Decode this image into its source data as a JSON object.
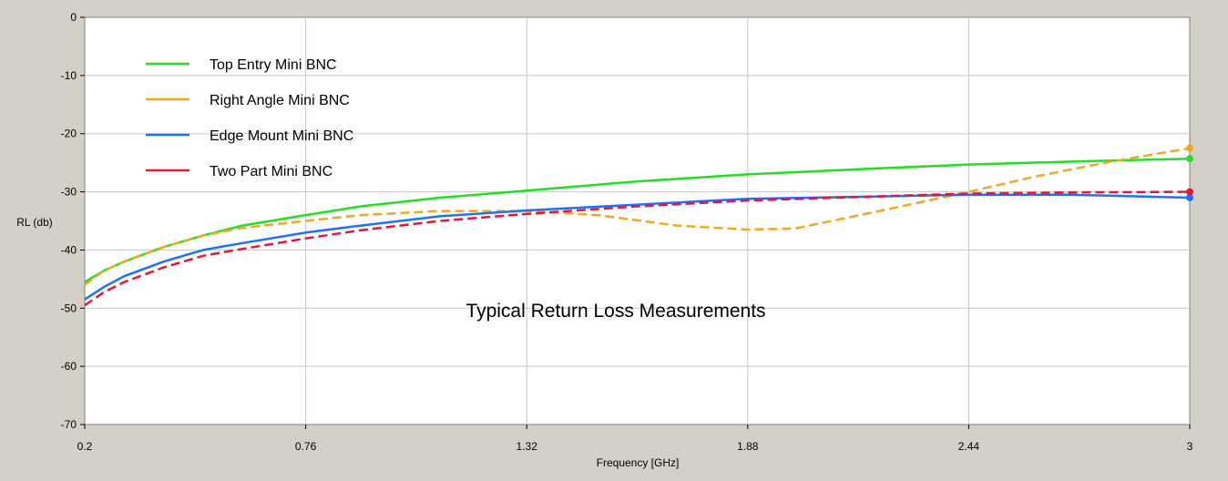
{
  "chart_data": {
    "type": "line",
    "title": "Typical Return Loss Measurements",
    "xlabel": "Frequency [GHz]",
    "ylabel": "RL (db)",
    "xlim": [
      0.2,
      3
    ],
    "ylim": [
      -70,
      0
    ],
    "xticks": [
      0.2,
      0.76,
      1.32,
      1.88,
      2.44,
      3
    ],
    "xtick_labels": [
      "0.2",
      "0.76",
      "1.32",
      "1.88",
      "2.44",
      "3"
    ],
    "yticks": [
      0,
      -10,
      -20,
      -30,
      -40,
      -50,
      -60,
      -70
    ],
    "ytick_labels": [
      "0",
      "-10",
      "-20",
      "-30",
      "-40",
      "-50",
      "-60",
      "-70"
    ],
    "grid": true,
    "legend_position": "top-left",
    "series": [
      {
        "name": "Top Entry Mini BNC",
        "color": "#22e022",
        "dashed": false,
        "x": [
          0.2,
          0.25,
          0.3,
          0.4,
          0.5,
          0.6,
          0.76,
          0.9,
          1.1,
          1.32,
          1.6,
          1.88,
          2.2,
          2.44,
          2.7,
          3.0
        ],
        "y": [
          -45.5,
          -43.5,
          -42,
          -39.5,
          -37.5,
          -35.8,
          -34,
          -32.5,
          -31,
          -29.8,
          -28.2,
          -27,
          -26,
          -25.3,
          -24.8,
          -24.3
        ]
      },
      {
        "name": "Right Angle Mini BNC",
        "color": "#f5a623",
        "dashed": true,
        "x": [
          0.2,
          0.25,
          0.3,
          0.4,
          0.5,
          0.6,
          0.76,
          0.9,
          1.1,
          1.32,
          1.5,
          1.7,
          1.88,
          2.0,
          2.2,
          2.44,
          2.6,
          2.8,
          3.0
        ],
        "y": [
          -46,
          -43.5,
          -42,
          -39.5,
          -37.5,
          -36.2,
          -35,
          -34,
          -33.3,
          -33.3,
          -34,
          -35.8,
          -36.5,
          -36.3,
          -33.5,
          -30,
          -27.5,
          -24.8,
          -22.5
        ]
      },
      {
        "name": "Edge Mount Mini BNC",
        "color": "#1e70ff",
        "dashed": false,
        "x": [
          0.2,
          0.25,
          0.3,
          0.4,
          0.5,
          0.6,
          0.76,
          0.9,
          1.1,
          1.32,
          1.6,
          1.88,
          2.2,
          2.44,
          2.7,
          3.0
        ],
        "y": [
          -48.5,
          -46.3,
          -44.5,
          -42,
          -40,
          -38.8,
          -37,
          -35.8,
          -34.2,
          -33.2,
          -32.2,
          -31.2,
          -30.8,
          -30.5,
          -30.5,
          -31
        ]
      },
      {
        "name": "Two Part Mini BNC",
        "color": "#e8143c",
        "dashed": true,
        "x": [
          0.2,
          0.25,
          0.3,
          0.4,
          0.5,
          0.6,
          0.76,
          0.9,
          1.1,
          1.32,
          1.6,
          1.88,
          2.2,
          2.44,
          2.7,
          3.0
        ],
        "y": [
          -49.5,
          -47.2,
          -45.5,
          -43,
          -41,
          -39.8,
          -38,
          -36.6,
          -35,
          -33.8,
          -32.5,
          -31.5,
          -30.8,
          -30.3,
          -30.1,
          -30
        ]
      }
    ]
  }
}
